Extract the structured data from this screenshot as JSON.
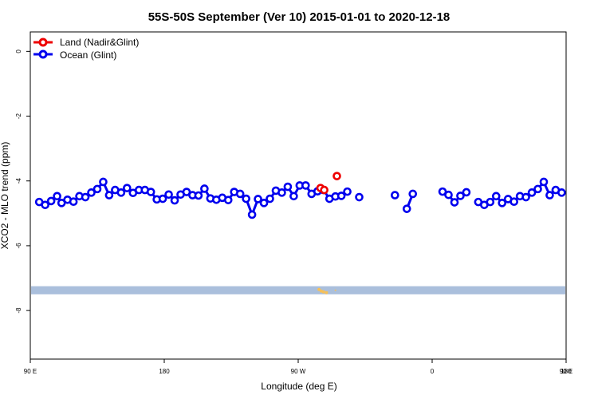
{
  "chart_data": {
    "type": "line",
    "title": "55S-50S September (Ver 10)   2015-01-01 to 2020-12-18",
    "xlabel": "Longitude (deg E)",
    "ylabel": "XCO2 - MLO trend (ppm)",
    "xlim": [
      90,
      450
    ],
    "ylim": [
      -9.5,
      0.6
    ],
    "x_ticks": [
      {
        "value": 90,
        "label": "90 E"
      },
      {
        "value": 180,
        "label": "180"
      },
      {
        "value": 270,
        "label": "90 W"
      },
      {
        "value": 360,
        "label": "0"
      },
      {
        "value": 450,
        "label": "90 E"
      }
    ],
    "x_ticks_extra": {
      "value": 450,
      "label": "180"
    },
    "y_ticks": [
      {
        "value": 0,
        "label": "0"
      },
      {
        "value": -2,
        "label": "-2"
      },
      {
        "value": -4,
        "label": "-4"
      },
      {
        "value": -6,
        "label": "-6"
      },
      {
        "value": -8,
        "label": "-8"
      }
    ],
    "grid": false,
    "legend_position": "top-left",
    "colors": {
      "land": "#ee0000",
      "ocean": "#0000ee",
      "band": "#aabfdc",
      "landmass": "#f5c05a"
    },
    "band": {
      "y_from": -7.25,
      "y_to": -7.5
    },
    "series": [
      {
        "name": "Land (Nadir&Glint)",
        "color": "#ee0000",
        "segments": [
          [
            [
              285,
              -4.22
            ],
            [
              287.5,
              -4.28
            ]
          ],
          [
            [
              296,
              -3.85
            ]
          ]
        ]
      },
      {
        "name": "Ocean (Glint)",
        "color": "#0000ee",
        "segments": [
          [
            [
              96,
              -4.65
            ],
            [
              100,
              -4.74
            ],
            [
              104,
              -4.62
            ],
            [
              108,
              -4.47
            ],
            [
              111,
              -4.68
            ],
            [
              115,
              -4.58
            ],
            [
              119,
              -4.64
            ],
            [
              123,
              -4.47
            ],
            [
              127,
              -4.5
            ],
            [
              131,
              -4.36
            ],
            [
              135,
              -4.25
            ],
            [
              139,
              -4.03
            ],
            [
              143,
              -4.44
            ],
            [
              147,
              -4.28
            ],
            [
              151,
              -4.36
            ],
            [
              155,
              -4.22
            ],
            [
              159,
              -4.37
            ],
            [
              163,
              -4.28
            ],
            [
              167,
              -4.28
            ],
            [
              171,
              -4.34
            ],
            [
              175,
              -4.57
            ],
            [
              179,
              -4.55
            ],
            [
              183,
              -4.42
            ],
            [
              187,
              -4.6
            ],
            [
              191,
              -4.42
            ],
            [
              195,
              -4.34
            ],
            [
              199,
              -4.44
            ],
            [
              203,
              -4.45
            ],
            [
              207,
              -4.24
            ],
            [
              211,
              -4.54
            ],
            [
              215,
              -4.58
            ],
            [
              219,
              -4.52
            ],
            [
              223,
              -4.59
            ],
            [
              227,
              -4.34
            ],
            [
              231,
              -4.4
            ],
            [
              235,
              -4.55
            ],
            [
              239,
              -5.04
            ],
            [
              243,
              -4.56
            ],
            [
              247,
              -4.68
            ],
            [
              251,
              -4.55
            ],
            [
              255,
              -4.3
            ],
            [
              259,
              -4.36
            ],
            [
              263,
              -4.18
            ],
            [
              267,
              -4.47
            ],
            [
              271,
              -4.14
            ],
            [
              275,
              -4.14
            ],
            [
              279,
              -4.4
            ],
            [
              283,
              -4.32
            ],
            [
              287,
              -4.28
            ],
            [
              291,
              -4.55
            ],
            [
              295,
              -4.48
            ],
            [
              299,
              -4.46
            ],
            [
              303,
              -4.33
            ]
          ],
          [
            [
              311,
              -4.5
            ]
          ],
          [
            [
              335,
              -4.44
            ]
          ],
          [
            [
              343,
              -4.86
            ],
            [
              347,
              -4.4
            ]
          ],
          [
            [
              367,
              -4.33
            ],
            [
              371,
              -4.43
            ],
            [
              375,
              -4.66
            ],
            [
              379,
              -4.46
            ],
            [
              383,
              -4.35
            ]
          ],
          [
            [
              391,
              -4.65
            ],
            [
              395,
              -4.74
            ],
            [
              399,
              -4.65
            ],
            [
              403,
              -4.47
            ],
            [
              407,
              -4.68
            ],
            [
              411,
              -4.56
            ],
            [
              415,
              -4.64
            ],
            [
              419,
              -4.47
            ],
            [
              423,
              -4.5
            ],
            [
              427,
              -4.36
            ],
            [
              431,
              -4.25
            ],
            [
              435,
              -4.03
            ],
            [
              439,
              -4.44
            ],
            [
              443,
              -4.28
            ],
            [
              447,
              -4.36
            ],
            [
              451,
              -4.22
            ],
            [
              455,
              -4.37
            ]
          ]
        ]
      }
    ]
  }
}
